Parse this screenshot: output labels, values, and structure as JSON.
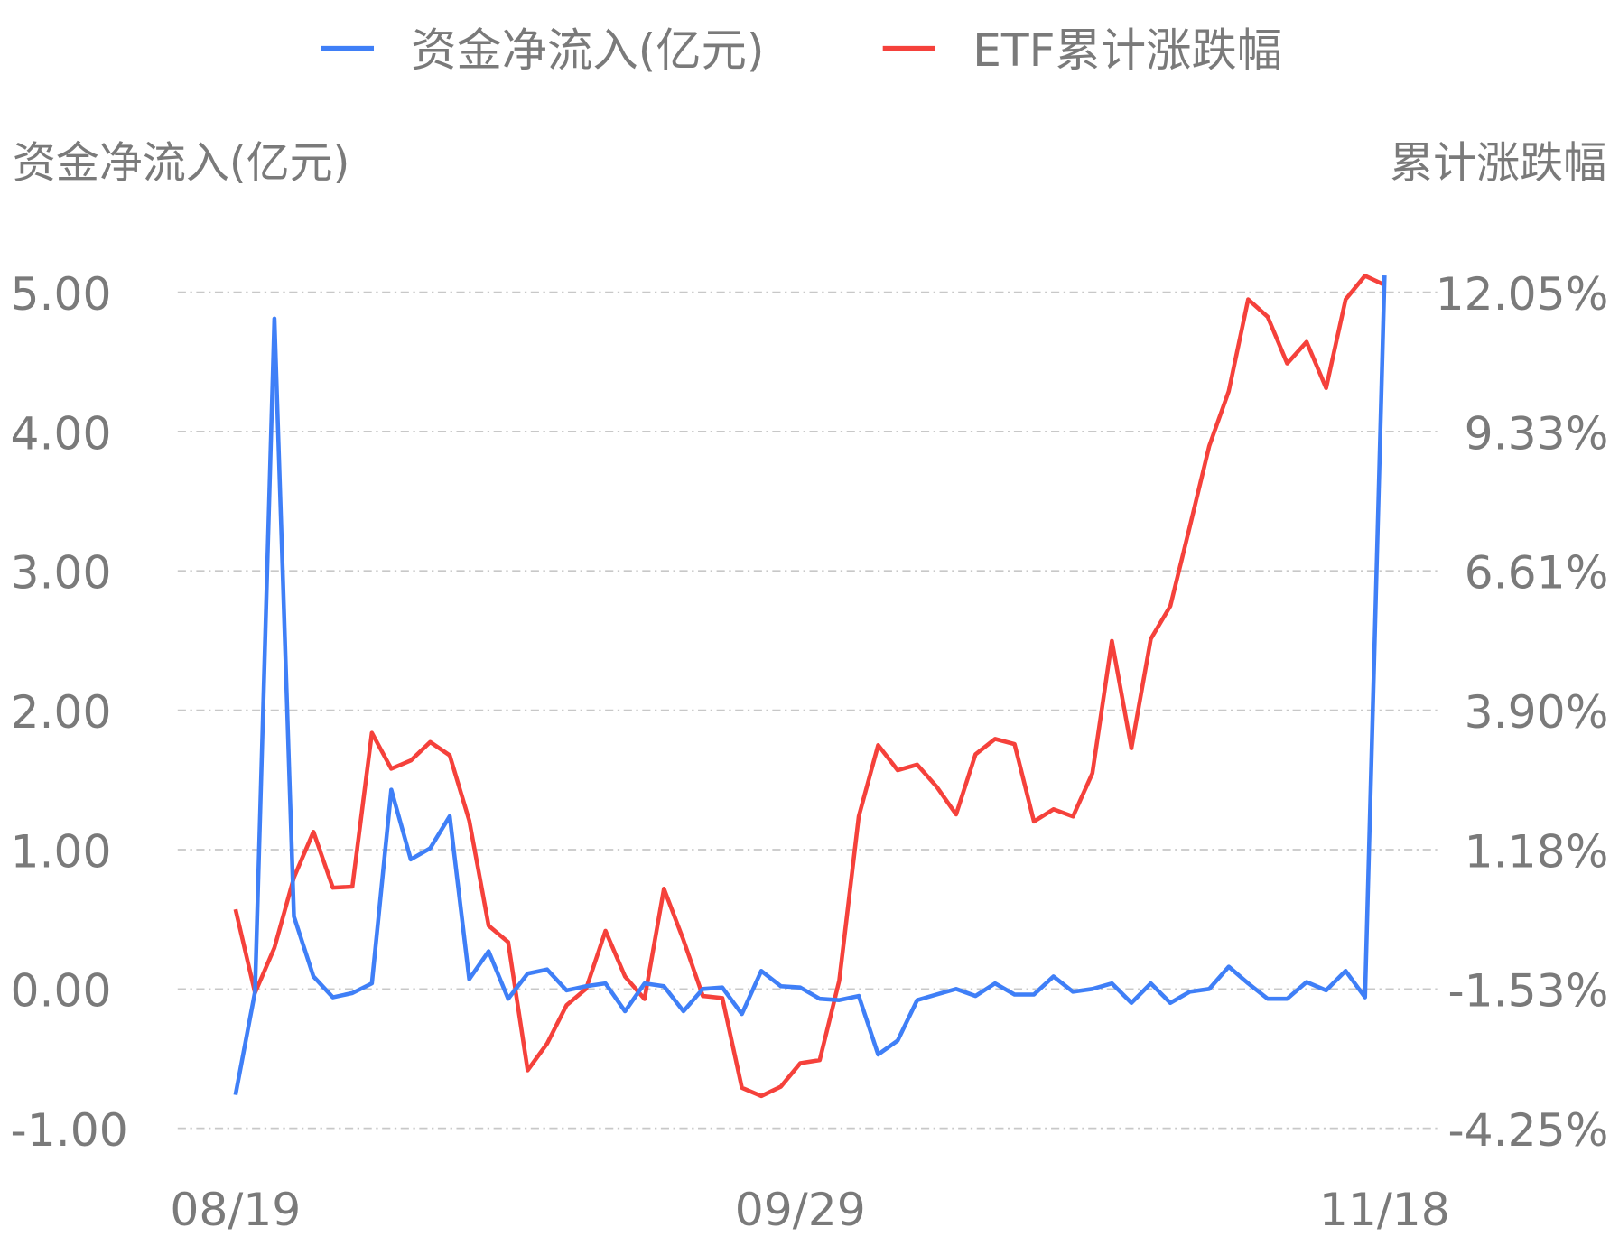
{
  "chart_data": {
    "type": "line",
    "legend": {
      "placement": "top",
      "entries": [
        "资金净流入(亿元)",
        "ETF累计涨跌幅"
      ]
    },
    "ylabel_left": "资金净流入(亿元)",
    "ylabel_right": "累计涨跌幅",
    "x_tick_labels": [
      "08/19",
      "09/29",
      "11/18"
    ],
    "x_tick_indices": [
      0,
      29,
      59
    ],
    "left_axis": {
      "ticks": [
        "5.00",
        "4.00",
        "3.00",
        "2.00",
        "1.00",
        "0.00",
        "-1.00"
      ],
      "ylim": [
        -1,
        5
      ]
    },
    "right_axis": {
      "ticks": [
        "12.05%",
        "9.33%",
        "6.61%",
        "3.90%",
        "1.18%",
        "-1.53%",
        "-4.25%"
      ],
      "ylim": [
        -4.25,
        12.05
      ]
    },
    "grid": true,
    "series": [
      {
        "name": "资金净流入(亿元)",
        "axis": "left",
        "color": "#3f7ff7",
        "values": [
          -0.76,
          -0.02,
          4.81,
          0.52,
          0.09,
          -0.06,
          -0.03,
          0.04,
          1.43,
          0.93,
          1.01,
          1.24,
          0.07,
          0.27,
          -0.07,
          0.11,
          0.14,
          -0.01,
          0.02,
          0.04,
          -0.16,
          0.04,
          0.02,
          -0.16,
          0.0,
          0.01,
          -0.18,
          0.13,
          0.02,
          0.01,
          -0.07,
          -0.08,
          -0.05,
          -0.47,
          -0.37,
          -0.08,
          -0.04,
          0.0,
          -0.05,
          0.04,
          -0.04,
          -0.04,
          0.09,
          -0.02,
          0.0,
          0.04,
          -0.1,
          0.04,
          -0.1,
          -0.02,
          0.0,
          0.16,
          0.04,
          -0.07,
          -0.07,
          0.05,
          -0.01,
          0.13,
          -0.06,
          5.12
        ]
      },
      {
        "name": "ETF累计涨跌幅",
        "axis": "right",
        "color": "#f5413b",
        "values": [
          0.02,
          -1.61,
          -0.73,
          0.64,
          1.53,
          0.44,
          0.46,
          3.46,
          2.76,
          2.92,
          3.28,
          3.02,
          1.75,
          -0.3,
          -0.62,
          -3.12,
          -2.6,
          -1.85,
          -1.53,
          -0.4,
          -1.29,
          -1.73,
          0.42,
          -0.58,
          -1.67,
          -1.71,
          -3.46,
          -3.62,
          -3.44,
          -2.98,
          -2.92,
          -1.37,
          1.83,
          3.22,
          2.73,
          2.84,
          2.41,
          1.87,
          3.04,
          3.34,
          3.24,
          1.73,
          1.97,
          1.83,
          2.67,
          5.25,
          3.16,
          5.29,
          5.93,
          7.48,
          9.05,
          10.12,
          11.91,
          11.57,
          10.66,
          11.08,
          10.18,
          11.91,
          12.37,
          12.19
        ]
      }
    ]
  }
}
